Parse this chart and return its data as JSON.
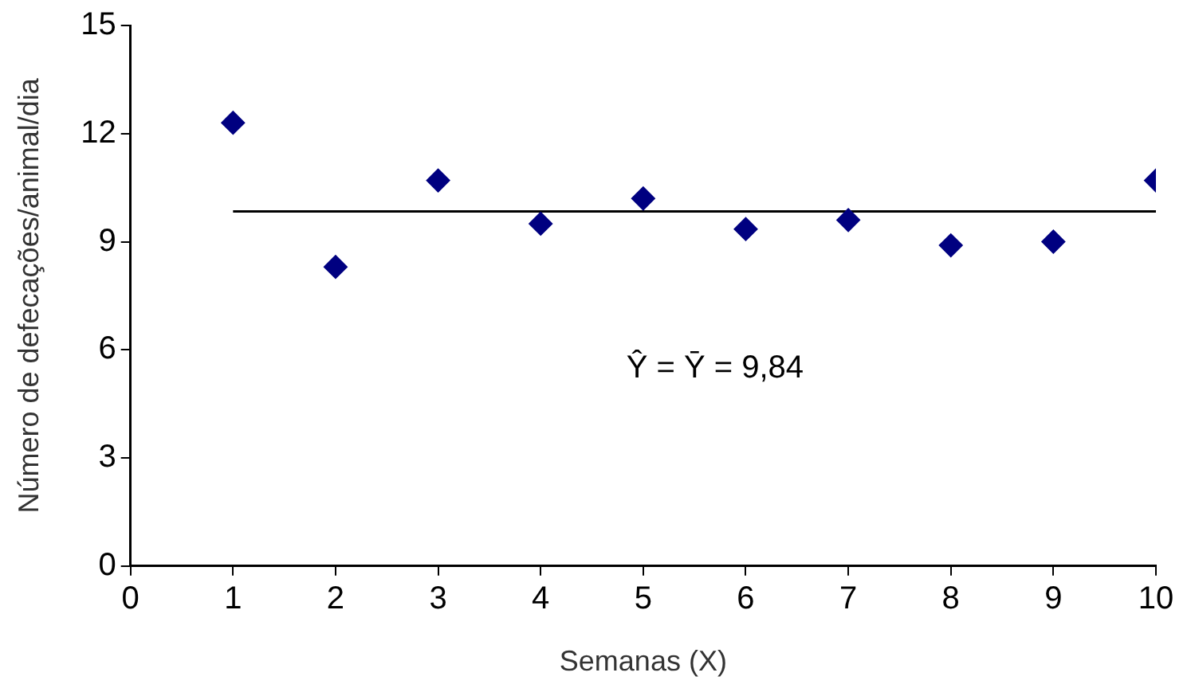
{
  "chart_data": {
    "type": "scatter",
    "xlabel": "Semanas (X)",
    "ylabel": "Número de defecações/animal/dia",
    "x": [
      1,
      2,
      3,
      4,
      5,
      6,
      7,
      8,
      9,
      10
    ],
    "series": [
      {
        "type": "scatter",
        "color": "#000080",
        "values": [
          12.3,
          8.3,
          10.7,
          9.5,
          10.2,
          9.35,
          9.6,
          8.9,
          9.0,
          10.7
        ],
        "marker": "diamond"
      },
      {
        "type": "line",
        "color": "#000000",
        "x": [
          1,
          10
        ],
        "values": [
          9.84,
          9.84
        ],
        "marker": "none"
      }
    ],
    "xlim": [
      0,
      10
    ],
    "xticks": [
      0,
      1,
      2,
      3,
      4,
      5,
      6,
      7,
      8,
      9,
      10
    ],
    "ylim": [
      0,
      15
    ],
    "yticks": [
      0,
      3,
      6,
      9,
      12,
      15
    ],
    "grid": false,
    "legend": false,
    "annotations": [
      "Ŷ = Ȳ = 9,84"
    ]
  }
}
